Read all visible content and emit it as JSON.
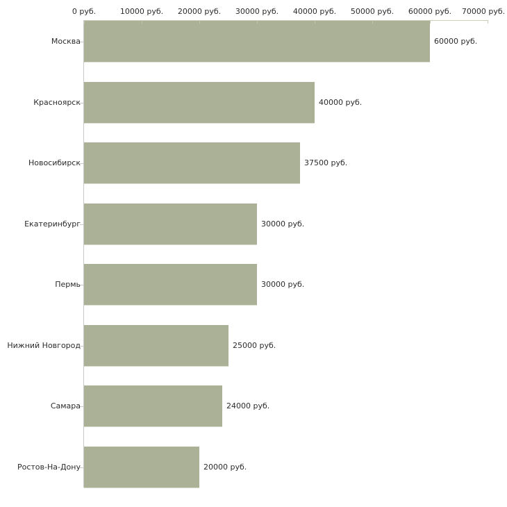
{
  "chart_data": {
    "type": "bar",
    "orientation": "horizontal",
    "title": "",
    "xlabel": "",
    "ylabel": "",
    "unit": "руб.",
    "categories": [
      "Москва",
      "Красноярск",
      "Новосибирск",
      "Екатеринбург",
      "Пермь",
      "Нижний Новгород",
      "Самара",
      "Ростов-На-Дону"
    ],
    "values": [
      60000,
      40000,
      37500,
      30000,
      30000,
      25000,
      24000,
      20000
    ],
    "value_labels": [
      "60000 руб.",
      "40000 руб.",
      "37500 руб.",
      "30000 руб.",
      "30000 руб.",
      "25000 руб.",
      "24000 руб.",
      "20000 руб."
    ],
    "x_tick_labels": [
      "0 руб.",
      "10000 руб.",
      "20000 руб.",
      "30000 руб.",
      "40000 руб.",
      "50000 руб.",
      "60000 руб.",
      "70000 руб."
    ],
    "x_tick_values": [
      0,
      10000,
      20000,
      30000,
      40000,
      50000,
      60000,
      70000
    ],
    "xlim": [
      0,
      70000
    ],
    "grid": false,
    "legend": false,
    "axis_position": "top",
    "colors": {
      "bar_fill": "#abb197",
      "bar_bottom_highlight": "#dcddd2",
      "x_axis_line": "#cdcdb8",
      "y_axis_line": "#c8c8c8",
      "tick_mark": "#c5c5ae",
      "category_tick": "#c8c8c8",
      "text": "#2b2b2b",
      "background": "#ffffff"
    }
  }
}
